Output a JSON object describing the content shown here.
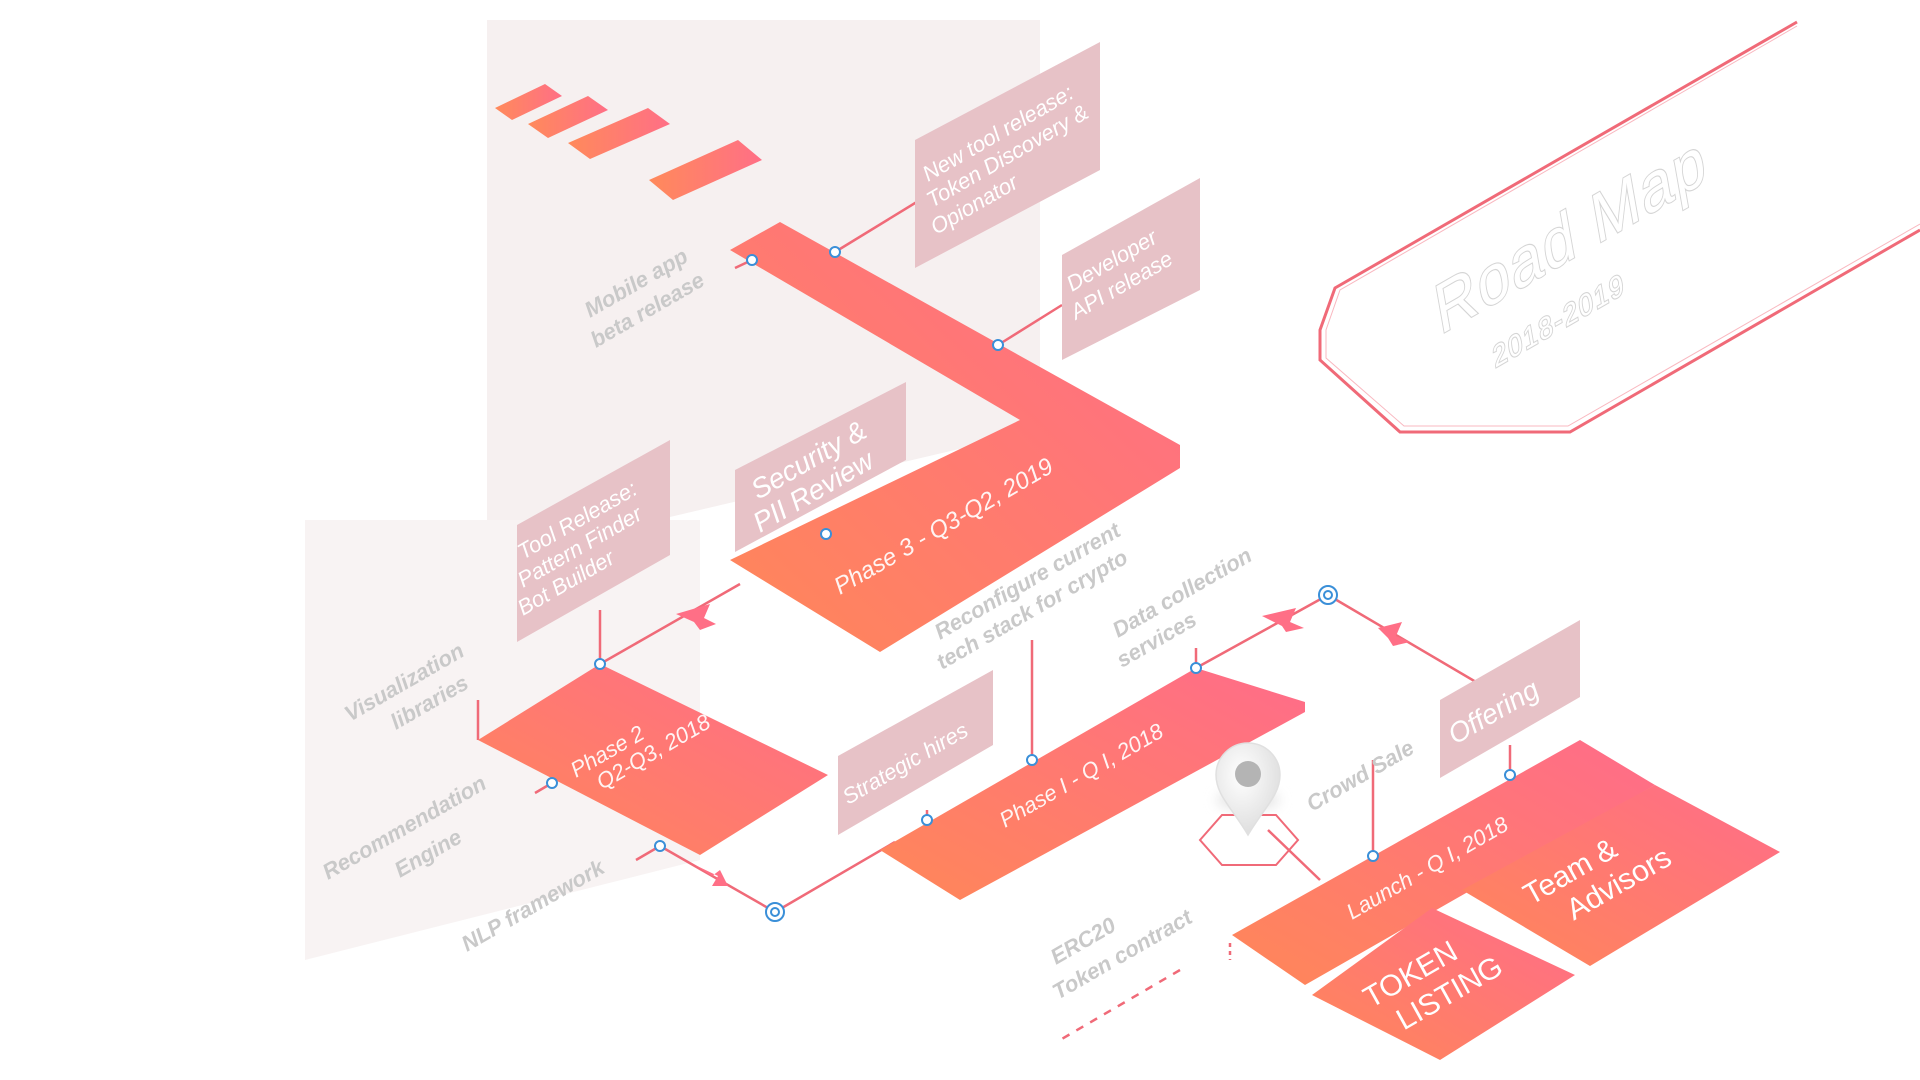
{
  "title": {
    "main": "Road Map",
    "years": "2018-2019"
  },
  "phases": {
    "phase3": "Phase 3 - Q3-Q2, 2019",
    "phase2_line1": "Phase 2",
    "phase2_line2": "Q2-Q3, 2018",
    "phase1": "Phase I - Q I, 2018",
    "launch": "Launch - Q I, 2018"
  },
  "cards": {
    "new_tool_line1": "New tool release:",
    "new_tool_line2": "Token Discovery &",
    "new_tool_line3": "Opionator",
    "developer_line1": "Developer",
    "developer_line2": "API release",
    "security_line1": "Security &",
    "security_line2": "PII Review",
    "tool_release_line1": "Tool Release:",
    "tool_release_line2": "Pattern Finder",
    "tool_release_line3": "Bot Builder",
    "strategic_hires": "Strategic hires",
    "offering": "Offering",
    "token_listing_line1": "TOKEN",
    "token_listing_line2": "LISTING",
    "team_line1": "Team &",
    "team_line2": "Advisors"
  },
  "labels": {
    "mobile_line1": "Mobile app",
    "mobile_line2": "beta release",
    "reconfigure_line1": "Reconfigure current",
    "reconfigure_line2": "tech stack for crypto",
    "data_collection_line1": "Data collection",
    "data_collection_line2": "services",
    "visualization_line1": "Visualization",
    "visualization_line2": "libraries",
    "recommendation_line1": "Recommendation",
    "recommendation_line2": "Engine",
    "nlp": "NLP framework",
    "crowd_sale": "Crowd Sale",
    "erc20_line1": "ERC20",
    "erc20_line2": "Token contract"
  },
  "colors": {
    "accent_orange": "#ff8a5b",
    "accent_pink": "#ff6f86",
    "card_fill": "#e7c2c7",
    "line": "#f06a78",
    "node": "#3a8fd8",
    "label_gray": "#c9c9c9"
  }
}
